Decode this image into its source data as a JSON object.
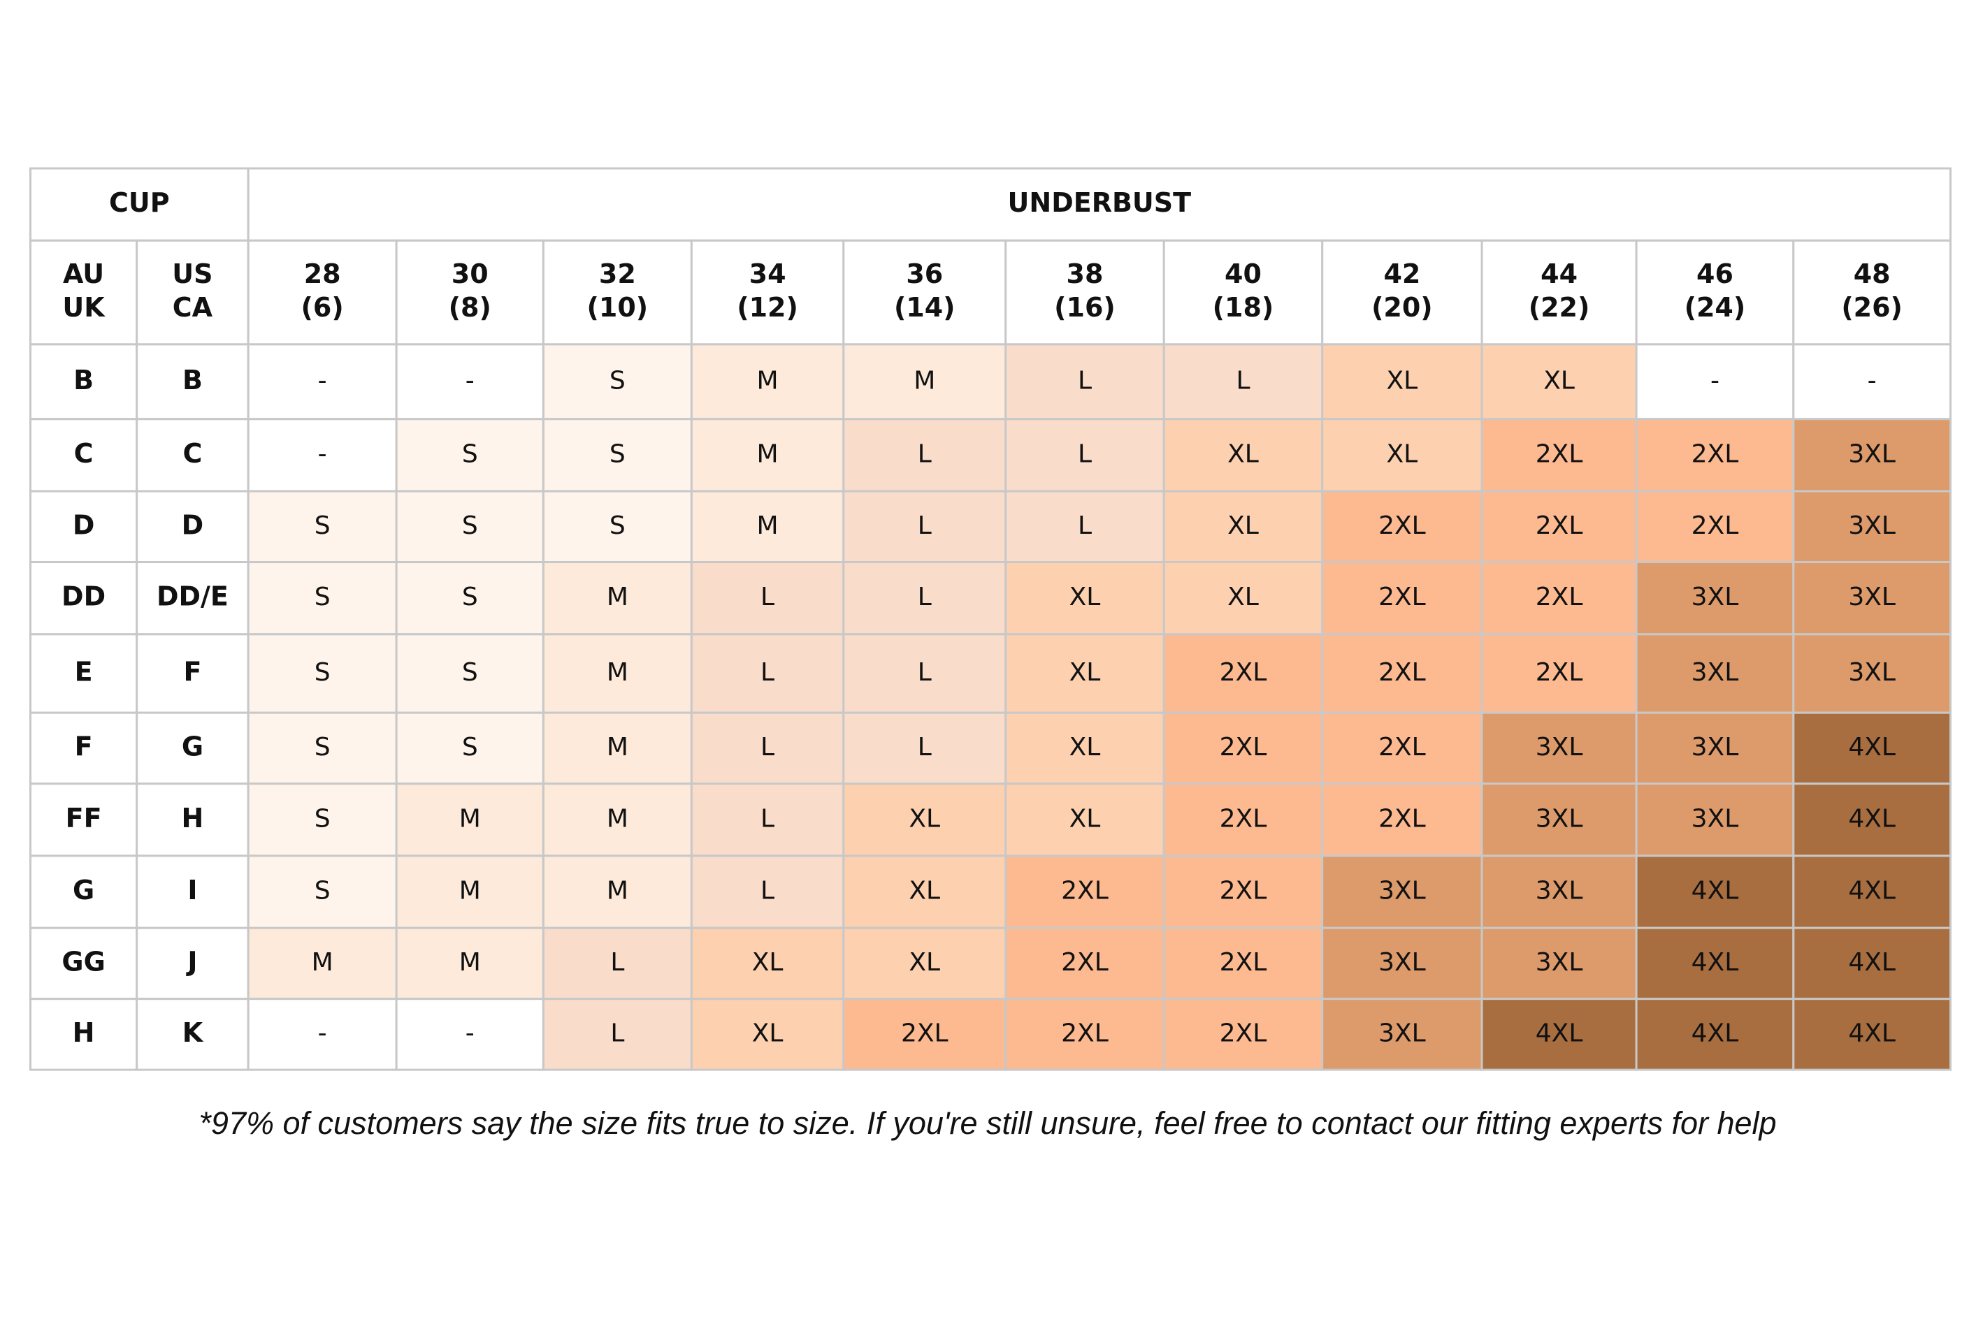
{
  "table": {
    "cup_title": "CUP",
    "underbust_title": "UNDERBUST",
    "au_uk": [
      "AU",
      "UK"
    ],
    "us_ca": [
      "US",
      "CA"
    ],
    "columns": [
      [
        "28",
        "(6)"
      ],
      [
        "30",
        "(8)"
      ],
      [
        "32",
        "(10)"
      ],
      [
        "34",
        "(12)"
      ],
      [
        "36",
        "(14)"
      ],
      [
        "38",
        "(16)"
      ],
      [
        "40",
        "(18)"
      ],
      [
        "42",
        "(20)"
      ],
      [
        "44",
        "(22)"
      ],
      [
        "46",
        "(24)"
      ],
      [
        "48",
        "(26)"
      ]
    ],
    "rows": [
      {
        "au": "B",
        "us": "B",
        "sizes": [
          "-",
          "-",
          "S",
          "M",
          "M",
          "L",
          "L",
          "XL",
          "XL",
          "-",
          "-"
        ]
      },
      {
        "au": "C",
        "us": "C",
        "sizes": [
          "-",
          "S",
          "S",
          "M",
          "L",
          "L",
          "XL",
          "XL",
          "2XL",
          "2XL",
          "3XL"
        ]
      },
      {
        "au": "D",
        "us": "D",
        "sizes": [
          "S",
          "S",
          "S",
          "M",
          "L",
          "L",
          "XL",
          "2XL",
          "2XL",
          "2XL",
          "3XL"
        ]
      },
      {
        "au": "DD",
        "us": "DD/E",
        "sizes": [
          "S",
          "S",
          "M",
          "L",
          "L",
          "XL",
          "XL",
          "2XL",
          "2XL",
          "3XL",
          "3XL"
        ]
      },
      {
        "au": "E",
        "us": "F",
        "sizes": [
          "S",
          "S",
          "M",
          "L",
          "L",
          "XL",
          "2XL",
          "2XL",
          "2XL",
          "3XL",
          "3XL"
        ]
      },
      {
        "au": "F",
        "us": "G",
        "sizes": [
          "S",
          "S",
          "M",
          "L",
          "L",
          "XL",
          "2XL",
          "2XL",
          "3XL",
          "3XL",
          "4XL"
        ]
      },
      {
        "au": "FF",
        "us": "H",
        "sizes": [
          "S",
          "M",
          "M",
          "L",
          "XL",
          "XL",
          "2XL",
          "2XL",
          "3XL",
          "3XL",
          "4XL"
        ]
      },
      {
        "au": "G",
        "us": "I",
        "sizes": [
          "S",
          "M",
          "M",
          "L",
          "XL",
          "2XL",
          "2XL",
          "3XL",
          "3XL",
          "4XL",
          "4XL"
        ]
      },
      {
        "au": "GG",
        "us": "J",
        "sizes": [
          "M",
          "M",
          "L",
          "XL",
          "XL",
          "2XL",
          "2XL",
          "3XL",
          "3XL",
          "4XL",
          "4XL"
        ]
      },
      {
        "au": "H",
        "us": "K",
        "sizes": [
          "-",
          "-",
          "L",
          "XL",
          "2XL",
          "2XL",
          "2XL",
          "3XL",
          "4XL",
          "4XL",
          "4XL"
        ]
      }
    ],
    "size_colors": {
      "-": "#ffffff",
      "S": "#fef4ec",
      "M": "#fdeadb",
      "L": "#fadccb",
      "XL": "#fdd0b0",
      "2XL": "#fdba90",
      "3XL": "#dd9a6a",
      "4XL": "#a96e40"
    }
  },
  "footnote": "*97% of customers say the size fits true to size. If you're still unsure, feel free to contact our fitting experts for help"
}
